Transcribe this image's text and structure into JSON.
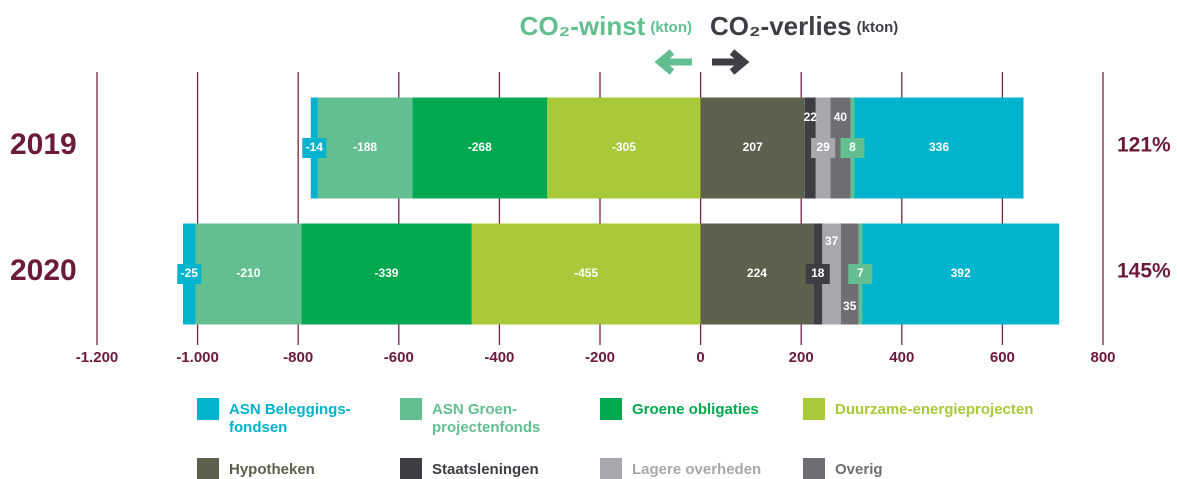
{
  "chart_data": {
    "type": "diverging_stacked_bar",
    "gain_label": "CO₂-winst",
    "loss_label": "CO₂-verlies",
    "unit": "(kton)",
    "categories": [
      "2019",
      "2020"
    ],
    "series": [
      {
        "name": "ASN Beleggings-fondsen",
        "color": "#00b4cd",
        "values": [
          [
            -14,
            336
          ],
          [
            -25,
            392
          ]
        ]
      },
      {
        "name": "ASN Groen-projectenfonds",
        "color": "#63bf8f",
        "values": [
          [
            -188,
            8
          ],
          [
            -210,
            7
          ]
        ]
      },
      {
        "name": "Groene obligaties",
        "color": "#00a84f",
        "values": [
          [
            -268
          ],
          [
            -339
          ]
        ]
      },
      {
        "name": "Duurzame-energieprojecten",
        "color": "#a8c93a",
        "values": [
          [
            -305
          ],
          [
            -455
          ]
        ]
      },
      {
        "name": "Hypotheken",
        "color": "#5d604c",
        "values": [
          [
            207
          ],
          [
            224
          ]
        ]
      },
      {
        "name": "Staatsleningen",
        "color": "#3e3f44",
        "values": [
          [
            22
          ],
          [
            18
          ]
        ]
      },
      {
        "name": "Lagere overheden",
        "color": "#a7a8ab",
        "values": [
          [
            29
          ],
          [
            37
          ]
        ]
      },
      {
        "name": "Overig",
        "color": "#6e6f73",
        "values": [
          [
            40
          ],
          [
            35
          ]
        ]
      }
    ],
    "totals": [
      121,
      145
    ],
    "totals_labels": [
      "121%",
      "145%"
    ],
    "xlim": [
      -1200,
      800
    ],
    "xticks": [
      {
        "value": -1200,
        "label": "-1.200"
      },
      {
        "value": -1000,
        "label": "-1.000"
      },
      -800,
      -600,
      -400,
      -200,
      0,
      200,
      400,
      600,
      800
    ],
    "grid": true,
    "grid_color": "#7a2348",
    "axis_label_color": "#6b1a3a"
  }
}
